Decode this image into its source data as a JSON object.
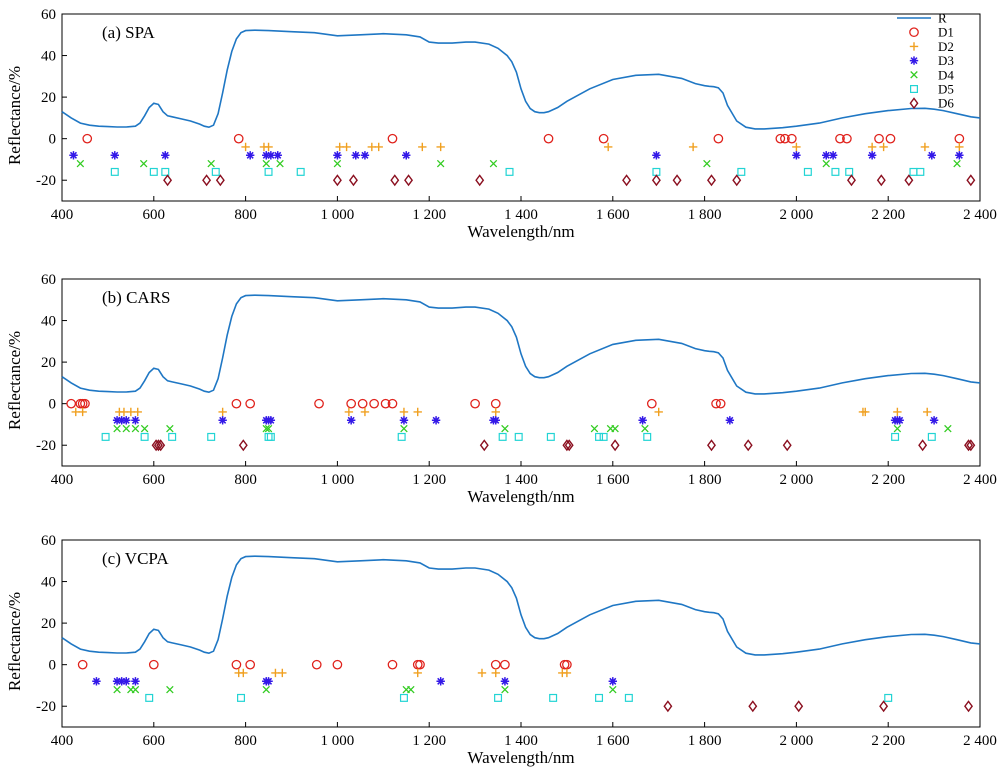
{
  "chart_data": [
    {
      "type": "line",
      "panel_label": "(a) SPA",
      "xlabel": "Wavelength/nm",
      "ylabel": "Reflectance/%",
      "xlim": [
        400,
        2400
      ],
      "ylim": [
        -30,
        60
      ],
      "xticks": [
        "400",
        "600",
        "800",
        "1 000",
        "1 200",
        "1 400",
        "1 600",
        "1 800",
        "2 000",
        "2 200",
        "2 400"
      ],
      "yticks": [
        "60",
        "40",
        "20",
        "0",
        "-20"
      ],
      "legend": [
        "R",
        "D1",
        "D2",
        "D3",
        "D4",
        "D5",
        "D6"
      ],
      "legend_placement": "top-right",
      "grid": false,
      "series": [
        {
          "name": "R",
          "style": "line",
          "color": "#1f77c4"
        },
        {
          "name": "D1",
          "marker": "circle",
          "color": "#e0221c",
          "y": 0,
          "x": [
            455,
            785,
            1120,
            1460,
            1580,
            1830,
            1965,
            1975,
            1990,
            2095,
            2110,
            2180,
            2205,
            2355
          ]
        },
        {
          "name": "D2",
          "marker": "plus",
          "color": "#f0a020",
          "y": -4,
          "x": [
            800,
            840,
            850,
            1005,
            1020,
            1075,
            1090,
            1185,
            1225,
            1590,
            1775,
            2000,
            2165,
            2190,
            2280,
            2355
          ]
        },
        {
          "name": "D3",
          "marker": "asterisk",
          "color": "#3318e8",
          "y": -8,
          "x": [
            425,
            515,
            625,
            810,
            845,
            855,
            870,
            1000,
            1040,
            1060,
            1150,
            1695,
            2000,
            2065,
            2080,
            2165,
            2295,
            2355
          ]
        },
        {
          "name": "D4",
          "marker": "x",
          "color": "#33cc22",
          "y": -12,
          "x": [
            440,
            578,
            725,
            845,
            875,
            1000,
            1225,
            1340,
            1805,
            2065,
            2350
          ]
        },
        {
          "name": "D5",
          "marker": "square",
          "color": "#22d4d4",
          "y": -16,
          "x": [
            515,
            600,
            625,
            735,
            850,
            920,
            1375,
            1695,
            1880,
            2025,
            2085,
            2115,
            2255,
            2270
          ]
        },
        {
          "name": "D6",
          "marker": "diamond",
          "color": "#8b1020",
          "y": -20,
          "x": [
            630,
            715,
            745,
            1000,
            1035,
            1125,
            1155,
            1310,
            1630,
            1695,
            1740,
            1815,
            1870,
            2120,
            2185,
            2245,
            2380
          ]
        }
      ]
    },
    {
      "type": "line",
      "panel_label": "(b) CARS",
      "xlabel": "Wavelength/nm",
      "ylabel": "Reflectance/%",
      "xlim": [
        400,
        2400
      ],
      "ylim": [
        -30,
        60
      ],
      "xticks": [
        "400",
        "600",
        "800",
        "1 000",
        "1 200",
        "1 400",
        "1 600",
        "1 800",
        "2 000",
        "2 200",
        "2 400"
      ],
      "yticks": [
        "60",
        "40",
        "20",
        "0",
        "-20"
      ],
      "grid": false,
      "series": [
        {
          "name": "R",
          "style": "line",
          "color": "#1f77c4"
        },
        {
          "name": "D1",
          "marker": "circle",
          "color": "#e0221c",
          "y": 0,
          "x": [
            420,
            440,
            445,
            450,
            780,
            810,
            960,
            1030,
            1055,
            1080,
            1105,
            1120,
            1300,
            1345,
            1685,
            1825,
            1835
          ]
        },
        {
          "name": "D2",
          "marker": "plus",
          "color": "#f0a020",
          "y": -4,
          "x": [
            430,
            445,
            525,
            535,
            550,
            565,
            750,
            1025,
            1060,
            1145,
            1175,
            1345,
            1700,
            2145,
            2150,
            2220,
            2285
          ]
        },
        {
          "name": "D3",
          "marker": "asterisk",
          "color": "#3318e8",
          "y": -8,
          "x": [
            520,
            530,
            540,
            560,
            750,
            845,
            850,
            855,
            1030,
            1145,
            1215,
            1340,
            1345,
            1665,
            1855,
            2215,
            2220,
            2225,
            2300
          ]
        },
        {
          "name": "D4",
          "marker": "x",
          "color": "#33cc22",
          "y": -12,
          "x": [
            520,
            540,
            560,
            580,
            635,
            845,
            850,
            1145,
            1365,
            1560,
            1595,
            1605,
            1670,
            2220,
            2330
          ]
        },
        {
          "name": "D5",
          "marker": "square",
          "color": "#22d4d4",
          "y": -16,
          "x": [
            495,
            580,
            640,
            725,
            850,
            855,
            1140,
            1360,
            1395,
            1465,
            1570,
            1580,
            1675,
            2215,
            2295
          ]
        },
        {
          "name": "D6",
          "marker": "diamond",
          "color": "#8b1020",
          "y": -20,
          "x": [
            605,
            610,
            615,
            795,
            1320,
            1500,
            1505,
            1605,
            1815,
            1895,
            1980,
            2275,
            2375,
            2380
          ]
        }
      ]
    },
    {
      "type": "line",
      "panel_label": "(c) VCPA",
      "xlabel": "Wavelength/nm",
      "ylabel": "Reflectance/%",
      "xlim": [
        400,
        2400
      ],
      "ylim": [
        -30,
        60
      ],
      "xticks": [
        "400",
        "600",
        "800",
        "1 000",
        "1 200",
        "1 400",
        "1 600",
        "1 800",
        "2 000",
        "2 200",
        "2 400"
      ],
      "yticks": [
        "60",
        "40",
        "20",
        "0",
        "-20"
      ],
      "grid": false,
      "series": [
        {
          "name": "R",
          "style": "line",
          "color": "#1f77c4"
        },
        {
          "name": "D1",
          "marker": "circle",
          "color": "#e0221c",
          "y": 0,
          "x": [
            445,
            600,
            780,
            810,
            955,
            1000,
            1120,
            1175,
            1180,
            1345,
            1365,
            1495,
            1500
          ]
        },
        {
          "name": "D2",
          "marker": "plus",
          "color": "#f0a020",
          "y": -4,
          "x": [
            785,
            795,
            865,
            880,
            1175,
            1315,
            1345,
            1490,
            1500
          ]
        },
        {
          "name": "D3",
          "marker": "asterisk",
          "color": "#3318e8",
          "y": -8,
          "x": [
            475,
            520,
            530,
            540,
            560,
            845,
            850,
            1225,
            1365,
            1600
          ]
        },
        {
          "name": "D4",
          "marker": "x",
          "color": "#33cc22",
          "y": -12,
          "x": [
            520,
            550,
            560,
            635,
            845,
            1150,
            1160,
            1365,
            1600
          ]
        },
        {
          "name": "D5",
          "marker": "square",
          "color": "#22d4d4",
          "y": -16,
          "x": [
            590,
            790,
            1145,
            1350,
            1470,
            1570,
            1635,
            2200
          ]
        },
        {
          "name": "D6",
          "marker": "diamond",
          "color": "#8b1020",
          "y": -20,
          "x": [
            1720,
            1905,
            2005,
            2190,
            2375
          ]
        }
      ]
    }
  ],
  "reflectance_curve": {
    "x": [
      400,
      420,
      440,
      460,
      480,
      500,
      520,
      540,
      560,
      570,
      580,
      590,
      600,
      610,
      620,
      630,
      640,
      660,
      680,
      700,
      710,
      720,
      730,
      740,
      750,
      760,
      770,
      780,
      790,
      800,
      820,
      850,
      900,
      950,
      1000,
      1050,
      1100,
      1150,
      1180,
      1200,
      1220,
      1250,
      1280,
      1300,
      1330,
      1350,
      1370,
      1380,
      1390,
      1400,
      1410,
      1420,
      1430,
      1440,
      1450,
      1460,
      1480,
      1500,
      1550,
      1600,
      1650,
      1700,
      1750,
      1780,
      1800,
      1810,
      1820,
      1830,
      1840,
      1850,
      1870,
      1890,
      1910,
      1930,
      1950,
      1970,
      2000,
      2050,
      2100,
      2150,
      2200,
      2250,
      2280,
      2300,
      2320,
      2350,
      2380,
      2400
    ],
    "y": [
      13,
      10,
      7.5,
      6.5,
      6,
      5.8,
      5.6,
      5.6,
      6,
      7.5,
      11,
      15,
      17,
      16.5,
      13,
      11,
      10.5,
      9.5,
      8.5,
      7,
      6,
      5.5,
      6.5,
      12,
      22,
      33,
      42,
      48,
      51,
      52,
      52.2,
      52,
      51.5,
      51,
      49.5,
      50,
      50.5,
      50,
      49,
      46.5,
      46,
      46,
      46.5,
      46.5,
      45.5,
      43.5,
      40,
      37,
      32,
      24,
      18,
      14.5,
      13,
      12.5,
      12.5,
      13,
      15,
      18,
      24,
      28.5,
      30.5,
      31,
      29,
      26.5,
      25.5,
      25.2,
      25,
      24.5,
      22,
      16,
      8.5,
      5.5,
      4.7,
      4.7,
      5,
      5.3,
      6,
      7.5,
      10,
      12,
      13.5,
      14.5,
      14.6,
      14.2,
      13.5,
      12,
      10.5,
      10
    ]
  }
}
